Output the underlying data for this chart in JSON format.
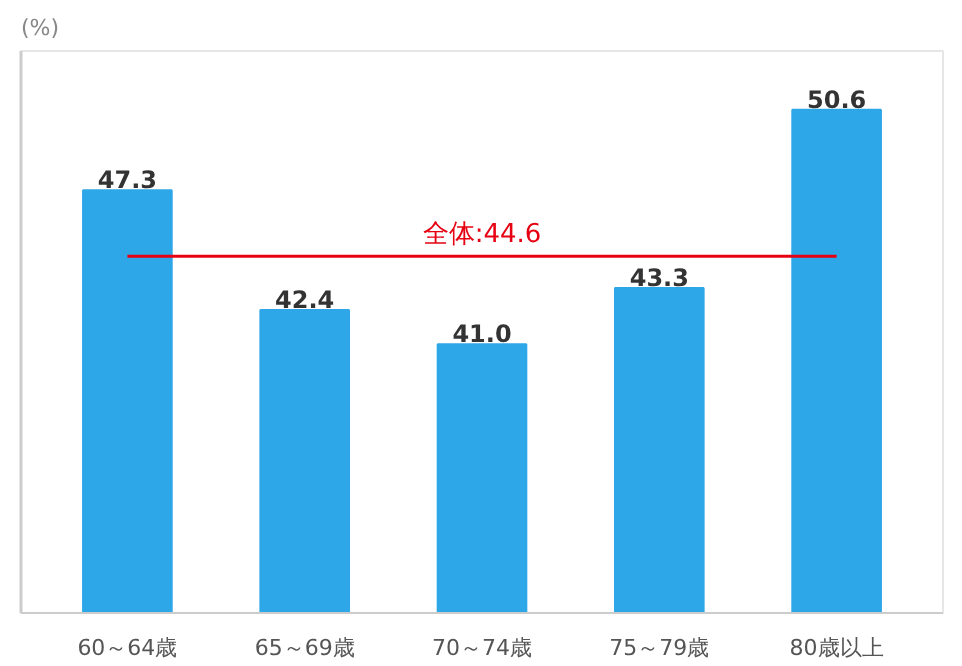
{
  "chart_data": {
    "type": "bar",
    "annotations": [
      "(%)"
    ],
    "categories": [
      "60～64歳",
      "65～69歳",
      "70～74歳",
      "75～79歳",
      "80歳以上"
    ],
    "values": [
      47.3,
      42.4,
      41.0,
      43.3,
      50.6
    ],
    "color": "#2ea7e8",
    "ylim": [
      30,
      53
    ],
    "value_labels": [
      "47.3",
      "42.4",
      "41.0",
      "43.3",
      "50.6"
    ],
    "grid": false,
    "ref_lines": [
      {
        "axis": "y",
        "value": 44.6,
        "label": "全体:44.6",
        "color": "#e60012"
      }
    ]
  }
}
